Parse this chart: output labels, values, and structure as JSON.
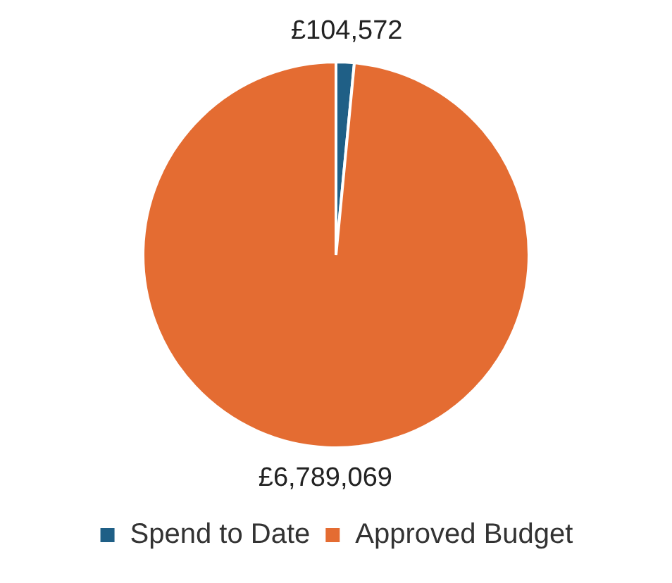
{
  "chart_data": {
    "type": "pie",
    "categories": [
      "Spend to Date",
      "Approved Budget"
    ],
    "values": [
      104572,
      6789069
    ],
    "colors": [
      "#1f5f86",
      "#e46c32"
    ],
    "value_labels": [
      "£104,572",
      "£6,789,069"
    ],
    "legend": "bottom"
  }
}
